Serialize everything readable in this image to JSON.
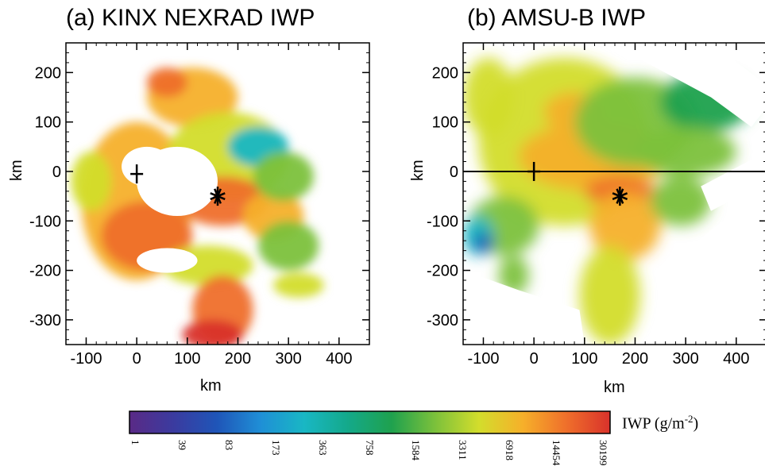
{
  "chart_data": [
    {
      "type": "heatmap",
      "panel": "a",
      "title": "(a)  KINX NEXRAD IWP",
      "xlabel": "km",
      "ylabel": "km",
      "xlim": [
        -140,
        460
      ],
      "ylim": [
        -350,
        260
      ],
      "xticks": [
        -100,
        0,
        100,
        200,
        300,
        400
      ],
      "yticks": [
        200,
        100,
        0,
        -100,
        -200,
        -300
      ],
      "markers": [
        {
          "symbol": "plus",
          "x": 0,
          "y": -5
        },
        {
          "symbol": "asterisk",
          "x": 160,
          "y": -50
        }
      ],
      "blobs": [
        {
          "x": 0,
          "y": -60,
          "rx": 110,
          "ry": 160,
          "level": 6918
        },
        {
          "x": 20,
          "y": -130,
          "rx": 90,
          "ry": 70,
          "level": 14454
        },
        {
          "x": 110,
          "y": 150,
          "rx": 90,
          "ry": 60,
          "level": 6918
        },
        {
          "x": 60,
          "y": 180,
          "rx": 40,
          "ry": 30,
          "level": 14454
        },
        {
          "x": 180,
          "y": 30,
          "rx": 120,
          "ry": 90,
          "level": 3311
        },
        {
          "x": 240,
          "y": 50,
          "rx": 60,
          "ry": 40,
          "level": 173
        },
        {
          "x": 170,
          "y": -60,
          "rx": 90,
          "ry": 50,
          "level": 14454
        },
        {
          "x": 270,
          "y": -90,
          "rx": 60,
          "ry": 50,
          "level": 6918
        },
        {
          "x": 290,
          "y": -10,
          "rx": 60,
          "ry": 50,
          "level": 1584
        },
        {
          "x": 140,
          "y": -190,
          "rx": 90,
          "ry": 40,
          "level": 3311
        },
        {
          "x": 170,
          "y": -280,
          "rx": 60,
          "ry": 70,
          "level": 14454
        },
        {
          "x": 150,
          "y": -330,
          "rx": 60,
          "ry": 30,
          "level": 30199
        },
        {
          "x": 300,
          "y": -150,
          "rx": 60,
          "ry": 50,
          "level": 1584
        },
        {
          "x": 320,
          "y": -230,
          "rx": 50,
          "ry": 25,
          "level": 3311
        },
        {
          "x": -90,
          "y": -20,
          "rx": 40,
          "ry": 60,
          "level": 3311
        }
      ],
      "holes": [
        {
          "x": 80,
          "y": -20,
          "rx": 80,
          "ry": 70
        },
        {
          "x": 20,
          "y": 10,
          "rx": 50,
          "ry": 40
        },
        {
          "x": 60,
          "y": -180,
          "rx": 60,
          "ry": 25
        }
      ]
    },
    {
      "type": "heatmap",
      "panel": "b",
      "title": "(b)      AMSU-B IWP",
      "xlabel": "km",
      "ylabel": "km",
      "xlim": [
        -140,
        460
      ],
      "ylim": [
        -350,
        260
      ],
      "xticks": [
        -100,
        0,
        100,
        200,
        300,
        400
      ],
      "yticks": [
        200,
        100,
        0,
        -100,
        -200,
        -300
      ],
      "hline_y": 0,
      "markers": [
        {
          "symbol": "plus",
          "x": 0,
          "y": 0
        },
        {
          "symbol": "asterisk",
          "x": 170,
          "y": -50
        }
      ],
      "blobs": [
        {
          "x": 60,
          "y": 60,
          "rx": 170,
          "ry": 170,
          "level": 3311
        },
        {
          "x": 120,
          "y": 30,
          "rx": 150,
          "ry": 70,
          "level": 6918
        },
        {
          "x": 170,
          "y": -40,
          "rx": 70,
          "ry": 30,
          "level": 14454
        },
        {
          "x": 80,
          "y": 120,
          "rx": 60,
          "ry": 40,
          "level": 6918
        },
        {
          "x": 200,
          "y": 100,
          "rx": 120,
          "ry": 90,
          "level": 1584
        },
        {
          "x": 340,
          "y": 140,
          "rx": 90,
          "ry": 60,
          "level": 758
        },
        {
          "x": 300,
          "y": 40,
          "rx": 100,
          "ry": 50,
          "level": 1584
        },
        {
          "x": 180,
          "y": -110,
          "rx": 70,
          "ry": 70,
          "level": 6918
        },
        {
          "x": 150,
          "y": -250,
          "rx": 60,
          "ry": 100,
          "level": 3311
        },
        {
          "x": -60,
          "y": -110,
          "rx": 70,
          "ry": 60,
          "level": 1584
        },
        {
          "x": -110,
          "y": -130,
          "rx": 30,
          "ry": 40,
          "level": 173
        },
        {
          "x": -100,
          "y": -145,
          "rx": 20,
          "ry": 20,
          "level": 39
        },
        {
          "x": -40,
          "y": -210,
          "rx": 30,
          "ry": 40,
          "level": 1584
        },
        {
          "x": 290,
          "y": -60,
          "rx": 60,
          "ry": 50,
          "level": 1584
        },
        {
          "x": -90,
          "y": 150,
          "rx": 50,
          "ry": 80,
          "level": 3311
        }
      ],
      "white": [
        {
          "poly": [
            [
              150,
              260
            ],
            [
              350,
              260
            ],
            [
              460,
              175
            ],
            [
              460,
              130
            ],
            [
              430,
              90
            ],
            [
              350,
              150
            ]
          ]
        },
        {
          "poly": [
            [
              250,
              -200
            ],
            [
              460,
              -30
            ],
            [
              460,
              -350
            ],
            [
              250,
              -350
            ]
          ]
        },
        {
          "poly": [
            [
              -140,
              -350
            ],
            [
              100,
              -350
            ],
            [
              90,
              -280
            ],
            [
              -30,
              -240
            ],
            [
              -140,
              -200
            ]
          ]
        },
        {
          "poly": [
            [
              330,
              -30
            ],
            [
              460,
              40
            ],
            [
              460,
              -20
            ],
            [
              350,
              -80
            ]
          ]
        }
      ]
    }
  ],
  "colorbar": {
    "label": "IWP (g/m",
    "label_sup": "-2",
    "label_close": ")",
    "ticks": [
      "1",
      "39",
      "83",
      "173",
      "363",
      "758",
      "1584",
      "3311",
      "6918",
      "14454",
      "30199"
    ],
    "colors": [
      "#5a2a86",
      "#3b3b9f",
      "#1f55b8",
      "#1f8fd6",
      "#19b7c4",
      "#14a98a",
      "#1fa14e",
      "#7cc13b",
      "#d3dd2c",
      "#f6b02a",
      "#ef6f2b",
      "#d9322b"
    ]
  }
}
